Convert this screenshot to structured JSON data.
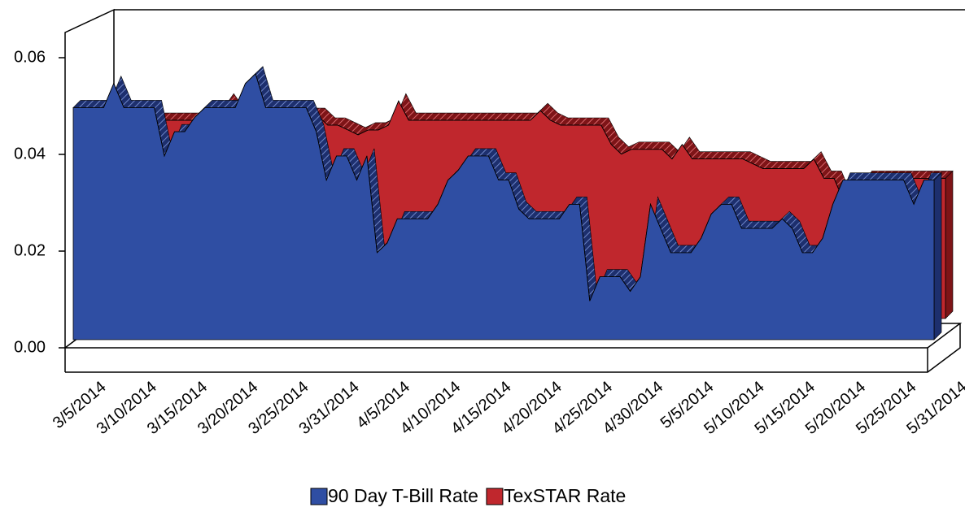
{
  "chart_data": {
    "type": "area3d",
    "categories": [
      "3/5/2014",
      null,
      null,
      null,
      null,
      "3/10/2014",
      null,
      null,
      null,
      null,
      "3/15/2014",
      null,
      null,
      null,
      null,
      "3/20/2014",
      null,
      null,
      null,
      null,
      "3/25/2014",
      null,
      null,
      null,
      null,
      "3/31/2014",
      null,
      null,
      null,
      null,
      "4/5/2014",
      null,
      null,
      null,
      null,
      "4/10/2014",
      null,
      null,
      null,
      null,
      "4/15/2014",
      null,
      null,
      null,
      null,
      "4/20/2014",
      null,
      null,
      null,
      null,
      "4/25/2014",
      null,
      null,
      null,
      null,
      "4/30/2014",
      null,
      null,
      null,
      null,
      "5/5/2014",
      null,
      null,
      null,
      null,
      "5/10/2014",
      null,
      null,
      null,
      null,
      "5/15/2014",
      null,
      null,
      null,
      null,
      "5/20/2014",
      null,
      null,
      null,
      null,
      "5/25/2014",
      null,
      null,
      null,
      null,
      "5/31/2014"
    ],
    "series": [
      {
        "name": "90 Day T-Bill Rate",
        "color": "#2f4ea3",
        "values": [
          0.048,
          0.048,
          0.048,
          0.048,
          0.053,
          0.048,
          0.048,
          0.048,
          0.048,
          0.038,
          0.043,
          0.043,
          0.046,
          0.048,
          0.048,
          0.048,
          0.048,
          0.053,
          0.055,
          0.048,
          0.048,
          0.048,
          0.048,
          0.048,
          0.043,
          0.033,
          0.038,
          0.038,
          0.033,
          0.038,
          0.018,
          0.02,
          0.025,
          0.025,
          0.025,
          0.025,
          0.028,
          0.033,
          0.035,
          0.038,
          0.038,
          0.038,
          0.033,
          0.033,
          0.027,
          0.025,
          0.025,
          0.025,
          0.025,
          0.028,
          0.028,
          0.008,
          0.013,
          0.013,
          0.013,
          0.01,
          0.013,
          0.028,
          0.023,
          0.018,
          0.018,
          0.018,
          0.021,
          0.026,
          0.028,
          0.028,
          0.023,
          0.023,
          0.023,
          0.023,
          0.025,
          0.023,
          0.018,
          0.018,
          0.021,
          0.028,
          0.033,
          0.033,
          0.033,
          0.033,
          0.033,
          0.033,
          0.033,
          0.028,
          0.033,
          0.033
        ]
      },
      {
        "name": "TexSTAR Rate",
        "color": "#c0272d",
        "values": [
          0.041,
          0.041,
          0.041,
          0.041,
          0.041,
          0.041,
          0.041,
          0.041,
          0.041,
          0.041,
          0.041,
          0.041,
          0.041,
          0.042,
          0.045,
          0.042,
          0.042,
          0.042,
          0.042,
          0.042,
          0.042,
          0.042,
          0.042,
          0.042,
          0.04,
          0.04,
          0.039,
          0.038,
          0.039,
          0.039,
          0.04,
          0.045,
          0.041,
          0.041,
          0.041,
          0.041,
          0.041,
          0.041,
          0.041,
          0.041,
          0.041,
          0.041,
          0.041,
          0.041,
          0.041,
          0.043,
          0.041,
          0.04,
          0.04,
          0.04,
          0.04,
          0.04,
          0.036,
          0.034,
          0.035,
          0.035,
          0.035,
          0.035,
          0.033,
          0.036,
          0.033,
          0.033,
          0.033,
          0.033,
          0.033,
          0.033,
          0.032,
          0.031,
          0.031,
          0.031,
          0.031,
          0.031,
          0.033,
          0.029,
          0.029,
          0.024,
          0.025,
          0.029,
          0.029,
          0.029,
          0.029,
          0.029,
          0.029,
          0.029,
          0.029,
          0.029
        ]
      }
    ],
    "ylim": [
      0,
      0.06
    ],
    "yticks": [
      {
        "value": 0,
        "label": "0.00"
      },
      0.02,
      0.04,
      0.06
    ]
  }
}
